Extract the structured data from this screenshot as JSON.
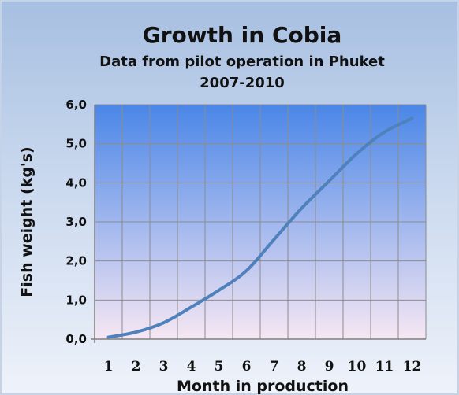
{
  "chart_data": {
    "type": "line",
    "title": "Growth in Cobia",
    "subtitle_line1": "Data from pilot operation in Phuket",
    "subtitle_line2": "2007-2010",
    "xlabel": "Month in production",
    "ylabel": "Fish weight (kg's)",
    "x": [
      1,
      2,
      3,
      4,
      5,
      6,
      7,
      8,
      9,
      10,
      11,
      12
    ],
    "ylim": [
      0,
      6
    ],
    "y_ticks": [
      "0,0",
      "1,0",
      "2,0",
      "3,0",
      "4,0",
      "5,0",
      "6,0"
    ],
    "x_ticks": [
      "1",
      "2",
      "3",
      "4",
      "5",
      "6",
      "7",
      "8",
      "9",
      "10",
      "11",
      "12"
    ],
    "grid": true,
    "legend": "none",
    "series": [
      {
        "values": [
          0.05,
          0.18,
          0.42,
          0.82,
          1.25,
          1.75,
          2.55,
          3.35,
          4.05,
          4.75,
          5.3,
          5.65
        ],
        "color": "#4f81bd"
      }
    ]
  },
  "colors": {
    "plot_top": "#4a86e8",
    "plot_bottom": "#f6e7f3",
    "gridline": "#8c8c8c",
    "line": "#4f81bd"
  }
}
